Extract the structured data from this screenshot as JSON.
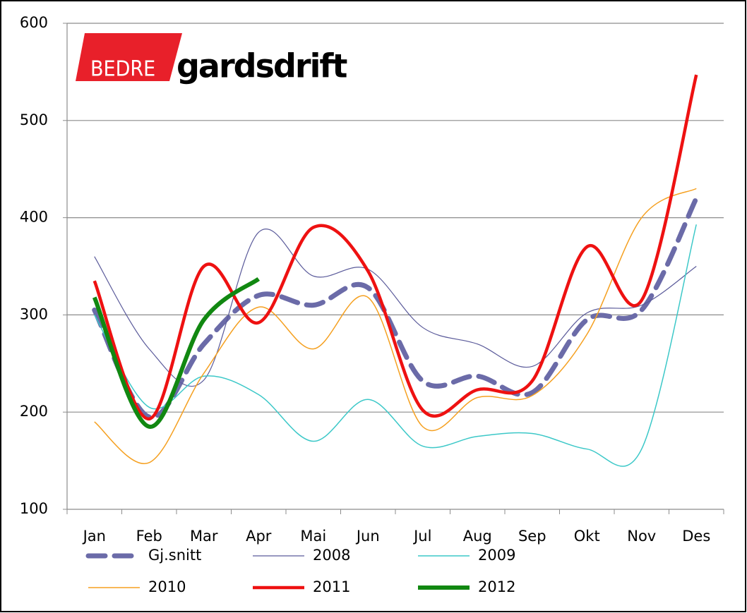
{
  "logo": {
    "part1": "BEDRE",
    "part2": "gardsdrift"
  },
  "chart_data": {
    "type": "line",
    "categories": [
      "Jan",
      "Feb",
      "Mar",
      "Apr",
      "Mai",
      "Jun",
      "Jul",
      "Aug",
      "Sep",
      "Okt",
      "Nov",
      "Des"
    ],
    "ylim": [
      100,
      600
    ],
    "yticks": [
      100,
      200,
      300,
      400,
      500,
      600
    ],
    "grid": true,
    "smooth": true,
    "series": [
      {
        "name": "Gj.snitt",
        "color": "#6b6ba8",
        "line_width": 7,
        "dashed": true,
        "values": [
          305,
          195,
          270,
          320,
          310,
          328,
          232,
          237,
          220,
          295,
          305,
          420
        ]
      },
      {
        "name": "2008",
        "color": "#5a5a9a",
        "line_width": 1.2,
        "dashed": false,
        "values": [
          360,
          265,
          233,
          385,
          340,
          347,
          287,
          270,
          247,
          302,
          310,
          350
        ]
      },
      {
        "name": "2009",
        "color": "#3cc8c8",
        "line_width": 1.5,
        "dashed": false,
        "values": [
          300,
          205,
          237,
          218,
          170,
          213,
          165,
          175,
          178,
          162,
          162,
          393
        ]
      },
      {
        "name": "2010",
        "color": "#f5a020",
        "line_width": 1.5,
        "dashed": false,
        "values": [
          190,
          148,
          240,
          308,
          265,
          318,
          185,
          215,
          217,
          280,
          400,
          430
        ]
      },
      {
        "name": "2011",
        "color": "#ee1111",
        "line_width": 4.5,
        "dashed": false,
        "values": [
          335,
          193,
          350,
          292,
          390,
          345,
          202,
          223,
          232,
          370,
          315,
          547
        ]
      },
      {
        "name": "2012",
        "color": "#118811",
        "line_width": 6,
        "dashed": false,
        "values": [
          318,
          185,
          295,
          337,
          null,
          null,
          null,
          null,
          null,
          null,
          null,
          null
        ]
      }
    ]
  }
}
